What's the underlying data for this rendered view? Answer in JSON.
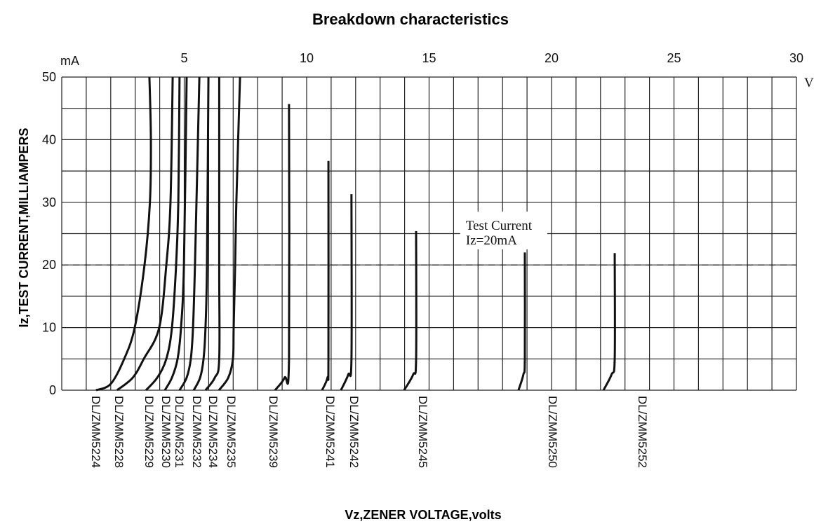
{
  "chart_data": {
    "type": "line",
    "title": "Breakdown characteristics",
    "xlabel": "Vz,ZENER VOLTAGE,volts",
    "ylabel": "Iz,TEST CURRENT,MILLIAMPERS",
    "x_unit": "V",
    "y_unit": "mA",
    "xlim": [
      0,
      30
    ],
    "ylim": [
      0,
      50
    ],
    "x_ticks": [
      "5",
      "10",
      "15",
      "20",
      "25",
      "30"
    ],
    "x_tick_values": [
      5,
      10,
      15,
      20,
      25,
      30
    ],
    "y_ticks": [
      "0",
      "10",
      "20",
      "30",
      "40",
      "50"
    ],
    "y_tick_values": [
      0,
      10,
      20,
      30,
      40,
      50
    ],
    "grid": true,
    "grid_x_step": 1,
    "grid_y_step": 5,
    "reference_line": {
      "y": 20,
      "style": "dashed"
    },
    "annotation": {
      "line1": "Test Current",
      "line2": "Iz=20mA",
      "x": 16.5
    },
    "series": [
      {
        "name": "DL/ZMM5224",
        "points": [
          [
            1.4,
            0
          ],
          [
            2.0,
            1
          ],
          [
            2.55,
            5
          ],
          [
            2.98,
            10
          ],
          [
            3.38,
            20
          ],
          [
            3.6,
            30
          ],
          [
            3.64,
            40
          ],
          [
            3.58,
            50
          ]
        ]
      },
      {
        "name": "DL/ZMM5228",
        "points": [
          [
            2.26,
            0
          ],
          [
            2.9,
            2
          ],
          [
            3.35,
            5
          ],
          [
            3.98,
            10
          ],
          [
            4.27,
            20
          ],
          [
            4.44,
            30
          ],
          [
            4.53,
            50
          ]
        ]
      },
      {
        "name": "DL/ZMM5229",
        "points": [
          [
            3.44,
            0
          ],
          [
            3.9,
            2
          ],
          [
            4.27,
            5
          ],
          [
            4.5,
            10
          ],
          [
            4.67,
            20
          ],
          [
            4.76,
            30
          ],
          [
            4.81,
            50
          ]
        ]
      },
      {
        "name": "DL/ZMM5230",
        "points": [
          [
            4.21,
            0
          ],
          [
            4.5,
            2
          ],
          [
            4.73,
            5
          ],
          [
            4.87,
            10
          ],
          [
            4.99,
            20
          ],
          [
            5.1,
            50
          ]
        ]
      },
      {
        "name": "DL/ZMM5231",
        "points": [
          [
            4.81,
            0
          ],
          [
            5.1,
            2
          ],
          [
            5.27,
            5
          ],
          [
            5.36,
            10
          ],
          [
            5.44,
            20
          ],
          [
            5.62,
            50
          ]
        ]
      },
      {
        "name": "DL/ZMM5232",
        "points": [
          [
            5.39,
            0
          ],
          [
            5.65,
            2
          ],
          [
            5.79,
            5
          ],
          [
            5.87,
            10
          ],
          [
            5.93,
            20
          ],
          [
            5.99,
            50
          ]
        ]
      },
      {
        "name": "DL/ZMM5234",
        "points": [
          [
            5.87,
            0
          ],
          [
            6.25,
            2
          ],
          [
            6.43,
            5
          ],
          [
            6.43,
            20
          ],
          [
            6.43,
            50
          ]
        ]
      },
      {
        "name": "DL/ZMM5235",
        "points": [
          [
            6.42,
            0
          ],
          [
            6.8,
            2
          ],
          [
            6.99,
            5
          ],
          [
            7.02,
            10
          ],
          [
            7.08,
            20
          ],
          [
            7.13,
            30
          ],
          [
            7.28,
            50
          ]
        ]
      },
      {
        "name": "DL/ZMM5239",
        "points": [
          [
            8.71,
            0
          ],
          [
            9.1,
            2
          ],
          [
            9.28,
            5
          ],
          [
            9.28,
            45.7
          ]
        ]
      },
      {
        "name": "DL/ZMM5241",
        "points": [
          [
            10.63,
            0
          ],
          [
            10.85,
            2
          ],
          [
            10.89,
            5
          ],
          [
            10.89,
            36.6
          ]
        ]
      },
      {
        "name": "DL/ZMM5242",
        "points": [
          [
            11.4,
            0
          ],
          [
            11.7,
            2.5
          ],
          [
            11.83,
            5
          ],
          [
            11.83,
            31.3
          ]
        ]
      },
      {
        "name": "DL/ZMM5245",
        "points": [
          [
            13.98,
            0
          ],
          [
            14.35,
            2.5
          ],
          [
            14.47,
            5
          ],
          [
            14.47,
            25.4
          ]
        ]
      },
      {
        "name": "DL/ZMM5250",
        "points": [
          [
            18.65,
            0
          ],
          [
            18.85,
            2.5
          ],
          [
            18.91,
            5
          ],
          [
            18.91,
            22.0
          ]
        ]
      },
      {
        "name": "DL/ZMM5252",
        "points": [
          [
            22.12,
            0
          ],
          [
            22.45,
            2.5
          ],
          [
            22.58,
            5
          ],
          [
            22.58,
            21.9
          ]
        ]
      }
    ]
  }
}
